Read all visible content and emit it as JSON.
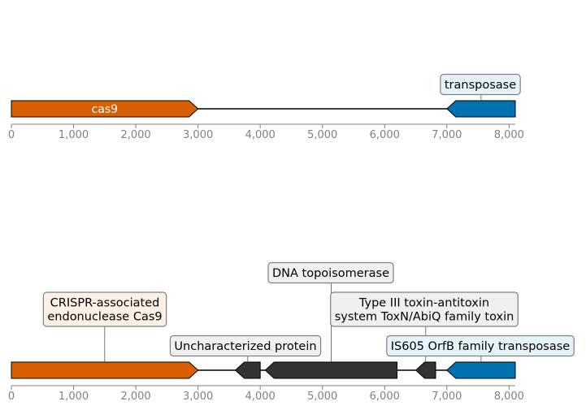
{
  "colors": {
    "cas9": "#d95f02",
    "transposase": "#0072b2",
    "other": "#333333",
    "axis": "#808080",
    "box_edge": "#808080",
    "box_cas9": "#fdf0e6",
    "box_transposase": "#e6f3fa",
    "box_other": "#f0f0f0"
  },
  "axis": {
    "min": 0,
    "max": 8100,
    "ticks": [
      0,
      1000,
      2000,
      3000,
      4000,
      5000,
      6000,
      7000,
      8000
    ],
    "tick_labels": [
      "0",
      "1,000",
      "2,000",
      "3,000",
      "4,000",
      "5,000",
      "6,000",
      "7,000",
      "8,000"
    ]
  },
  "tracks": [
    {
      "id": "top",
      "backbone": [
        0,
        8100
      ],
      "features": [
        {
          "name": "cas9",
          "start": 0,
          "end": 3000,
          "strand": 1,
          "kind": "cas9",
          "inline_label": "cas9"
        },
        {
          "name": "transposase",
          "start": 7000,
          "end": 8100,
          "strand": -1,
          "kind": "transposase",
          "annotation": [
            "transposase"
          ]
        }
      ]
    },
    {
      "id": "bottom",
      "backbone": [
        0,
        8100
      ],
      "features": [
        {
          "name": "cas9",
          "start": 0,
          "end": 3000,
          "strand": 1,
          "kind": "cas9",
          "annotation": [
            "CRISPR-associated",
            "endonuclease Cas9"
          ]
        },
        {
          "name": "uncharacterized",
          "start": 3600,
          "end": 4000,
          "strand": -1,
          "kind": "other",
          "annotation": [
            "Uncharacterized protein"
          ]
        },
        {
          "name": "topoisomerase",
          "start": 4080,
          "end": 6200,
          "strand": -1,
          "kind": "other",
          "annotation": [
            "DNA topoisomerase"
          ]
        },
        {
          "name": "toxin",
          "start": 6500,
          "end": 6820,
          "strand": -1,
          "kind": "other",
          "annotation": [
            "Type III toxin-antitoxin",
            "system ToxN/AbiQ family toxin"
          ]
        },
        {
          "name": "is605-transposase",
          "start": 7000,
          "end": 8100,
          "strand": -1,
          "kind": "transposase",
          "annotation": [
            "IS605 OrfB family transposase"
          ]
        }
      ]
    }
  ]
}
